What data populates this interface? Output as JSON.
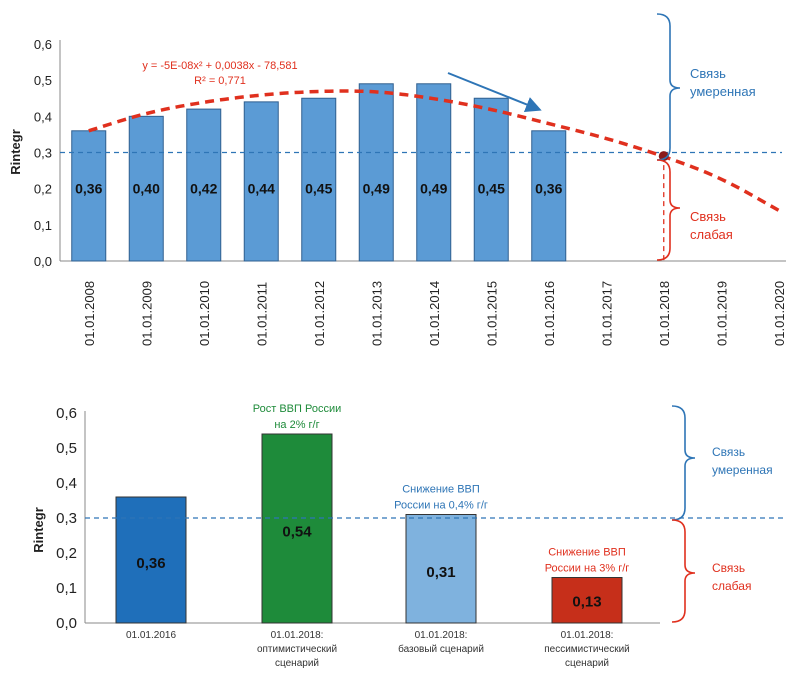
{
  "colors": {
    "bar_top": "#5b9bd5",
    "bar_top_stroke": "#2f5f8f",
    "trend": "#e0301e",
    "threshold": "#2e75b6",
    "arrow": "#2e75b6",
    "moderate": "#2e75b6",
    "weak": "#e0301e",
    "bar_2016": "#1f6fba",
    "bar_opt": "#1e8b3a",
    "bar_base": "#7fb2de",
    "bar_pess": "#c62f1a",
    "note_green": "#1e8b3a",
    "note_blue": "#2e75b6",
    "note_red": "#e0301e"
  },
  "chart_data": [
    {
      "type": "bar",
      "title": "",
      "xlabel": "",
      "ylabel": "Rintegr",
      "ylim": [
        0,
        0.6
      ],
      "yticks": [
        "0,0",
        "0,1",
        "0,2",
        "0,3",
        "0,4",
        "0,5",
        "0,6"
      ],
      "categories": [
        "01.01.2008",
        "01.01.2009",
        "01.01.2010",
        "01.01.2011",
        "01.01.2012",
        "01.01.2013",
        "01.01.2014",
        "01.01.2015",
        "01.01.2016",
        "01.01.2017",
        "01.01.2018",
        "01.01.2019",
        "01.01.2020"
      ],
      "values": [
        0.36,
        0.4,
        0.42,
        0.44,
        0.45,
        0.49,
        0.49,
        0.45,
        0.36,
        null,
        null,
        null,
        null
      ],
      "value_labels": [
        "0,36",
        "0,40",
        "0,42",
        "0,44",
        "0,45",
        "0,49",
        "0,49",
        "0,45",
        "0,36",
        "",
        "",
        "",
        ""
      ],
      "threshold": 0.3,
      "trendline": {
        "equation": "y = -5E-08x² + 0,0038x - 78,581",
        "r2": "R² = 0,771",
        "points": [
          0.36,
          0.41,
          0.44,
          0.46,
          0.47,
          0.47,
          0.45,
          0.42,
          0.38,
          0.34,
          0.29,
          0.23,
          0.14
        ]
      },
      "marker": {
        "category": "01.01.2018",
        "value": 0.29
      },
      "annotations": {
        "moderate": "Связь\nумеренная",
        "weak": "Связь\nслабая"
      },
      "grid": false
    },
    {
      "type": "bar",
      "title": "",
      "xlabel": "",
      "ylabel": "Rintegr",
      "ylim": [
        0,
        0.6
      ],
      "yticks": [
        "0,0",
        "0,1",
        "0,2",
        "0,3",
        "0,4",
        "0,5",
        "0,6"
      ],
      "categories": [
        "01.01.2016",
        "01.01.2018:\nоптимистический\nсценарий",
        "01.01.2018:\nбазовый сценарий",
        "01.01.2018:\nпессимистический\nсценарий"
      ],
      "values": [
        0.36,
        0.54,
        0.31,
        0.13
      ],
      "value_labels": [
        "0,36",
        "0,54",
        "0,31",
        "0,13"
      ],
      "bar_notes": [
        "",
        "Рост ВВП России\nна 2% г/г",
        "Снижение ВВП\nРоссии на 0,4% г/г",
        "Снижение ВВП\nРоссии на 3% г/г"
      ],
      "threshold": 0.3,
      "annotations": {
        "moderate": "Связь\nумеренная",
        "weak": "Связь\nслабая"
      },
      "grid": false
    }
  ]
}
